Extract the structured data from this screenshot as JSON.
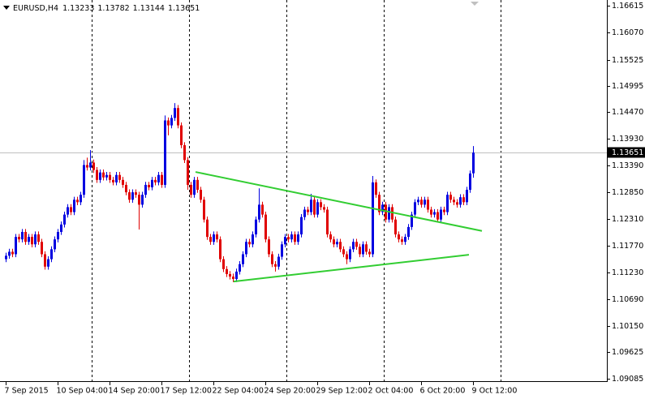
{
  "chart_data": {
    "type": "candlestick",
    "symbol": "EURUSD,H4",
    "bull_color": "#0000e0",
    "bear_color": "#e00000",
    "bid_color": "#c0c0c0",
    "separator_color": "#000000",
    "ylim": [
      1.09039,
      1.1673
    ],
    "yticks": [
      1.16615,
      {
        "value": 1.1607,
        "label": "1.16070"
      },
      1.15525,
      1.14995,
      {
        "value": 1.1447,
        "label": "1.14470"
      },
      {
        "value": 1.1393,
        "label": "1.13930"
      },
      {
        "value": 1.1339,
        "label": "1.13390"
      },
      {
        "value": 1.1285,
        "label": "1.12850"
      },
      {
        "value": 1.1231,
        "label": "1.12310"
      },
      {
        "value": 1.1177,
        "label": "1.11770"
      },
      {
        "value": 1.1123,
        "label": "1.11230"
      },
      {
        "value": 1.1069,
        "label": "1.10690"
      },
      {
        "value": 1.1015,
        "label": "1.10150"
      },
      1.09625,
      1.09085
    ],
    "categories": [
      "7 Sep 2015",
      null,
      null,
      null,
      null,
      null,
      null,
      null,
      null,
      null,
      null,
      null,
      null,
      null,
      null,
      null,
      "10 Sep 04:00",
      null,
      null,
      null,
      null,
      null,
      null,
      null,
      null,
      null,
      null,
      null,
      null,
      null,
      null,
      null,
      "14 Sep 20:00",
      null,
      null,
      null,
      null,
      null,
      null,
      null,
      null,
      null,
      null,
      null,
      null,
      null,
      null,
      null,
      "17 Sep 12:00",
      null,
      null,
      null,
      null,
      null,
      null,
      null,
      null,
      null,
      null,
      null,
      null,
      null,
      null,
      null,
      "22 Sep 04:00",
      null,
      null,
      null,
      null,
      null,
      null,
      null,
      null,
      null,
      null,
      null,
      null,
      null,
      null,
      null,
      "24 Sep 20:00",
      null,
      null,
      null,
      null,
      null,
      null,
      null,
      null,
      null,
      null,
      null,
      null,
      null,
      null,
      null,
      "29 Sep 12:00",
      null,
      null,
      null,
      null,
      null,
      null,
      null,
      null,
      null,
      null,
      null,
      null,
      null,
      null,
      null,
      "2 Oct 04:00",
      null,
      null,
      null,
      null,
      null,
      null,
      null,
      null,
      null,
      null,
      null,
      null,
      null,
      null,
      null,
      "6 Oct 20:00",
      null,
      null,
      null,
      null,
      null,
      null,
      null,
      null,
      null,
      null,
      null,
      null,
      null,
      null,
      null,
      "9 Oct 12:00"
    ],
    "candles": [
      [
        1.115,
        1.1163,
        1.1144,
        1.1157
      ],
      [
        1.1157,
        1.1171,
        1.1151,
        1.1165
      ],
      [
        1.1165,
        1.1171,
        1.1154,
        1.116
      ],
      [
        1.116,
        1.1201,
        1.1154,
        1.1195
      ],
      [
        1.1195,
        1.1201,
        1.1184,
        1.119
      ],
      [
        1.119,
        1.1211,
        1.1184,
        1.1205
      ],
      [
        1.1205,
        1.1211,
        1.1179,
        1.1185
      ],
      [
        1.1185,
        1.1201,
        1.1179,
        1.1195
      ],
      [
        1.1195,
        1.1201,
        1.1174,
        1.118
      ],
      [
        1.118,
        1.1206,
        1.1174,
        1.12
      ],
      [
        1.12,
        1.1206,
        1.1179,
        1.1185
      ],
      [
        1.1185,
        1.1191,
        1.1154,
        1.116
      ],
      [
        1.116,
        1.1166,
        1.1129,
        1.1135
      ],
      [
        1.1135,
        1.1156,
        1.1129,
        1.115
      ],
      [
        1.115,
        1.1176,
        1.1144,
        1.117
      ],
      [
        1.117,
        1.1196,
        1.1164,
        1.119
      ],
      [
        1.119,
        1.1211,
        1.1184,
        1.1205
      ],
      [
        1.1205,
        1.1226,
        1.1199,
        1.122
      ],
      [
        1.122,
        1.1246,
        1.1214,
        1.124
      ],
      [
        1.124,
        1.1261,
        1.1234,
        1.1255
      ],
      [
        1.1255,
        1.1261,
        1.1239,
        1.1245
      ],
      [
        1.1245,
        1.1276,
        1.1239,
        1.127
      ],
      [
        1.127,
        1.1276,
        1.1259,
        1.1265
      ],
      [
        1.1265,
        1.1286,
        1.1259,
        1.128
      ],
      [
        1.128,
        1.135,
        1.1274,
        1.134
      ],
      [
        1.134,
        1.1355,
        1.1329,
        1.1335
      ],
      [
        1.1335,
        1.137,
        1.1329,
        1.1345
      ],
      [
        1.1345,
        1.1351,
        1.1324,
        1.133
      ],
      [
        1.133,
        1.1336,
        1.1304,
        1.131
      ],
      [
        1.131,
        1.1331,
        1.1304,
        1.1325
      ],
      [
        1.1325,
        1.1331,
        1.1309,
        1.1315
      ],
      [
        1.1315,
        1.1326,
        1.1309,
        1.132
      ],
      [
        1.132,
        1.1326,
        1.1304,
        1.131
      ],
      [
        1.131,
        1.1316,
        1.1299,
        1.1305
      ],
      [
        1.1305,
        1.1326,
        1.1299,
        1.132
      ],
      [
        1.132,
        1.1326,
        1.1304,
        1.131
      ],
      [
        1.131,
        1.1316,
        1.1294,
        1.13
      ],
      [
        1.13,
        1.1306,
        1.1279,
        1.1285
      ],
      [
        1.1285,
        1.1291,
        1.1264,
        1.127
      ],
      [
        1.127,
        1.1291,
        1.1264,
        1.1285
      ],
      [
        1.1285,
        1.1291,
        1.1274,
        1.128
      ],
      [
        1.128,
        1.1286,
        1.121,
        1.126
      ],
      [
        1.126,
        1.1286,
        1.1254,
        1.128
      ],
      [
        1.128,
        1.1306,
        1.1274,
        1.13
      ],
      [
        1.13,
        1.1306,
        1.1289,
        1.1295
      ],
      [
        1.1295,
        1.1316,
        1.1289,
        1.131
      ],
      [
        1.131,
        1.1316,
        1.1299,
        1.1305
      ],
      [
        1.1305,
        1.1326,
        1.1299,
        1.132
      ],
      [
        1.132,
        1.1326,
        1.1294,
        1.13
      ],
      [
        1.13,
        1.144,
        1.1294,
        1.143
      ],
      [
        1.143,
        1.1436,
        1.14,
        1.142
      ],
      [
        1.142,
        1.1441,
        1.1414,
        1.1435
      ],
      [
        1.1435,
        1.1465,
        1.1429,
        1.1455
      ],
      [
        1.1455,
        1.1461,
        1.1414,
        1.142
      ],
      [
        1.142,
        1.1426,
        1.1374,
        1.138
      ],
      [
        1.138,
        1.1386,
        1.1344,
        1.135
      ],
      [
        1.135,
        1.1356,
        1.129,
        1.13
      ],
      [
        1.13,
        1.1306,
        1.1274,
        1.128
      ],
      [
        1.128,
        1.1316,
        1.1274,
        1.131
      ],
      [
        1.131,
        1.1316,
        1.1284,
        1.129
      ],
      [
        1.129,
        1.1296,
        1.1264,
        1.127
      ],
      [
        1.127,
        1.1276,
        1.1224,
        1.123
      ],
      [
        1.123,
        1.1236,
        1.1189,
        1.1195
      ],
      [
        1.1195,
        1.1201,
        1.1179,
        1.1185
      ],
      [
        1.1185,
        1.1206,
        1.1179,
        1.12
      ],
      [
        1.12,
        1.1206,
        1.1184,
        1.119
      ],
      [
        1.119,
        1.1196,
        1.1144,
        1.115
      ],
      [
        1.115,
        1.1156,
        1.1124,
        1.113
      ],
      [
        1.113,
        1.1136,
        1.1114,
        1.112
      ],
      [
        1.112,
        1.1126,
        1.1109,
        1.1115
      ],
      [
        1.1115,
        1.1121,
        1.1104,
        1.111
      ],
      [
        1.111,
        1.1131,
        1.1104,
        1.1125
      ],
      [
        1.1125,
        1.1146,
        1.1119,
        1.114
      ],
      [
        1.114,
        1.1166,
        1.1134,
        1.116
      ],
      [
        1.116,
        1.1191,
        1.1154,
        1.1185
      ],
      [
        1.1185,
        1.1191,
        1.1174,
        1.118
      ],
      [
        1.118,
        1.1206,
        1.1174,
        1.12
      ],
      [
        1.12,
        1.1236,
        1.1194,
        1.123
      ],
      [
        1.123,
        1.1293,
        1.1224,
        1.126
      ],
      [
        1.126,
        1.1266,
        1.1234,
        1.124
      ],
      [
        1.124,
        1.1246,
        1.1184,
        1.119
      ],
      [
        1.119,
        1.1196,
        1.1154,
        1.116
      ],
      [
        1.116,
        1.1166,
        1.1134,
        1.114
      ],
      [
        1.114,
        1.1146,
        1.1125,
        1.1135
      ],
      [
        1.1135,
        1.1161,
        1.1129,
        1.1155
      ],
      [
        1.1155,
        1.1186,
        1.1149,
        1.118
      ],
      [
        1.118,
        1.1201,
        1.1174,
        1.1195
      ],
      [
        1.1195,
        1.1201,
        1.1184,
        1.119
      ],
      [
        1.119,
        1.1206,
        1.1184,
        1.12
      ],
      [
        1.12,
        1.1206,
        1.1179,
        1.1185
      ],
      [
        1.1185,
        1.1206,
        1.1179,
        1.12
      ],
      [
        1.12,
        1.1241,
        1.1194,
        1.1235
      ],
      [
        1.1235,
        1.1256,
        1.1229,
        1.125
      ],
      [
        1.125,
        1.1256,
        1.1239,
        1.1245
      ],
      [
        1.1245,
        1.1282,
        1.1239,
        1.127
      ],
      [
        1.127,
        1.1276,
        1.1234,
        1.124
      ],
      [
        1.124,
        1.1271,
        1.1234,
        1.1265
      ],
      [
        1.1265,
        1.1271,
        1.1249,
        1.1255
      ],
      [
        1.1255,
        1.1261,
        1.1244,
        1.125
      ],
      [
        1.125,
        1.1256,
        1.1194,
        1.12
      ],
      [
        1.12,
        1.1206,
        1.1184,
        1.119
      ],
      [
        1.119,
        1.1196,
        1.1174,
        1.118
      ],
      [
        1.118,
        1.1191,
        1.1174,
        1.1185
      ],
      [
        1.1185,
        1.1191,
        1.1164,
        1.117
      ],
      [
        1.117,
        1.1176,
        1.1154,
        1.116
      ],
      [
        1.116,
        1.1166,
        1.114,
        1.115
      ],
      [
        1.115,
        1.1176,
        1.1144,
        1.117
      ],
      [
        1.117,
        1.1191,
        1.1164,
        1.1185
      ],
      [
        1.1185,
        1.1191,
        1.1169,
        1.1175
      ],
      [
        1.1175,
        1.1181,
        1.1154,
        1.116
      ],
      [
        1.116,
        1.1186,
        1.1154,
        1.118
      ],
      [
        1.118,
        1.1186,
        1.1159,
        1.1165
      ],
      [
        1.1165,
        1.1171,
        1.1154,
        1.116
      ],
      [
        1.116,
        1.1318,
        1.1154,
        1.1305
      ],
      [
        1.1305,
        1.1311,
        1.1274,
        1.128
      ],
      [
        1.128,
        1.1286,
        1.1239,
        1.1245
      ],
      [
        1.1245,
        1.1266,
        1.1239,
        1.126
      ],
      [
        1.126,
        1.1266,
        1.1224,
        1.123
      ],
      [
        1.123,
        1.1261,
        1.1224,
        1.1255
      ],
      [
        1.1255,
        1.1261,
        1.1224,
        1.123
      ],
      [
        1.123,
        1.1236,
        1.1194,
        1.12
      ],
      [
        1.12,
        1.1206,
        1.1184,
        1.119
      ],
      [
        1.119,
        1.1196,
        1.1179,
        1.1185
      ],
      [
        1.1185,
        1.1201,
        1.1179,
        1.1195
      ],
      [
        1.1195,
        1.1221,
        1.1189,
        1.1215
      ],
      [
        1.1215,
        1.1246,
        1.1209,
        1.124
      ],
      [
        1.124,
        1.1271,
        1.1234,
        1.1265
      ],
      [
        1.1265,
        1.1276,
        1.1259,
        1.127
      ],
      [
        1.127,
        1.1276,
        1.1254,
        1.126
      ],
      [
        1.126,
        1.1276,
        1.1254,
        1.127
      ],
      [
        1.127,
        1.1276,
        1.1244,
        1.125
      ],
      [
        1.125,
        1.1256,
        1.1234,
        1.124
      ],
      [
        1.124,
        1.1251,
        1.1234,
        1.1245
      ],
      [
        1.1245,
        1.1251,
        1.1224,
        1.123
      ],
      [
        1.123,
        1.1256,
        1.1224,
        1.125
      ],
      [
        1.125,
        1.1256,
        1.1239,
        1.1245
      ],
      [
        1.1245,
        1.1286,
        1.1239,
        1.128
      ],
      [
        1.128,
        1.1286,
        1.1264,
        1.127
      ],
      [
        1.127,
        1.1276,
        1.1259,
        1.1265
      ],
      [
        1.1265,
        1.1271,
        1.1254,
        1.126
      ],
      [
        1.126,
        1.1281,
        1.1254,
        1.1275
      ],
      [
        1.1275,
        1.1281,
        1.1259,
        1.1265
      ],
      [
        1.1265,
        1.1296,
        1.1259,
        1.129
      ],
      [
        1.129,
        1.1329,
        1.1284,
        1.1323
      ],
      [
        1.13233,
        1.13782,
        1.13144,
        1.13651
      ]
    ],
    "trendlines": [
      {
        "x": [
          58.5,
          146.75
        ],
        "y": [
          1.1326,
          1.1207
        ],
        "color": "#32cd32"
      },
      {
        "x": [
          70.25,
          142.75
        ],
        "y": [
          1.1105,
          1.1159
        ],
        "color": "#32cd32"
      }
    ],
    "separators": [
      26.5,
      56.5,
      86.5,
      116.5,
      152.5
    ]
  }
}
